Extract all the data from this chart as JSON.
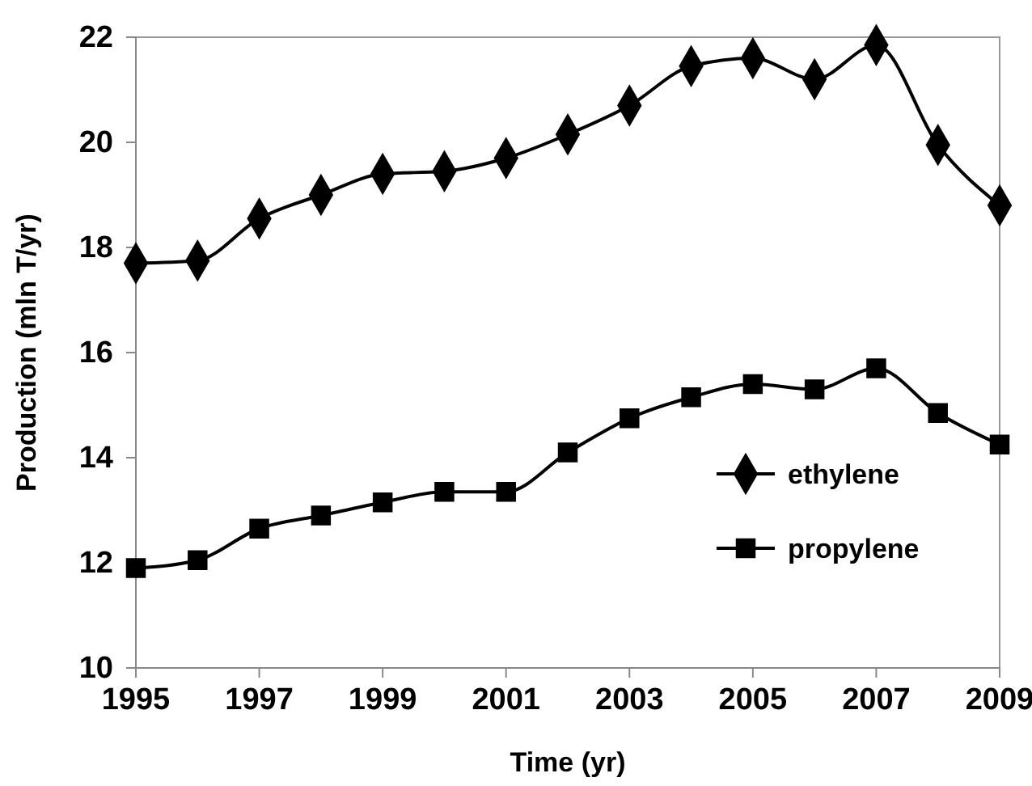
{
  "chart_data": {
    "type": "line",
    "xlabel": "Time (yr)",
    "ylabel": "Production (mln T/yr)",
    "x": [
      1995,
      1996,
      1997,
      1998,
      1999,
      2000,
      2001,
      2002,
      2003,
      2004,
      2005,
      2006,
      2007,
      2008,
      2009
    ],
    "series": [
      {
        "name": "ethylene",
        "color": "#000000",
        "marker": "diamond",
        "values": [
          17.7,
          17.75,
          18.55,
          19.0,
          19.4,
          19.45,
          19.7,
          20.15,
          20.7,
          21.45,
          21.6,
          21.2,
          21.85,
          19.95,
          18.8
        ]
      },
      {
        "name": "propylene",
        "color": "#000000",
        "marker": "square",
        "values": [
          11.9,
          12.05,
          12.65,
          12.9,
          13.15,
          13.35,
          13.35,
          14.1,
          14.75,
          15.15,
          15.4,
          15.3,
          15.7,
          14.85,
          14.25
        ]
      }
    ],
    "xlim": [
      1995,
      2009
    ],
    "xticks": [
      1995,
      1997,
      1999,
      2001,
      2003,
      2005,
      2007,
      2009
    ],
    "ylim": [
      10,
      22
    ],
    "yticks": [
      10,
      12,
      14,
      16,
      18,
      20,
      22
    ],
    "grid": false,
    "legend": "bottom right",
    "line_style": "solid"
  }
}
